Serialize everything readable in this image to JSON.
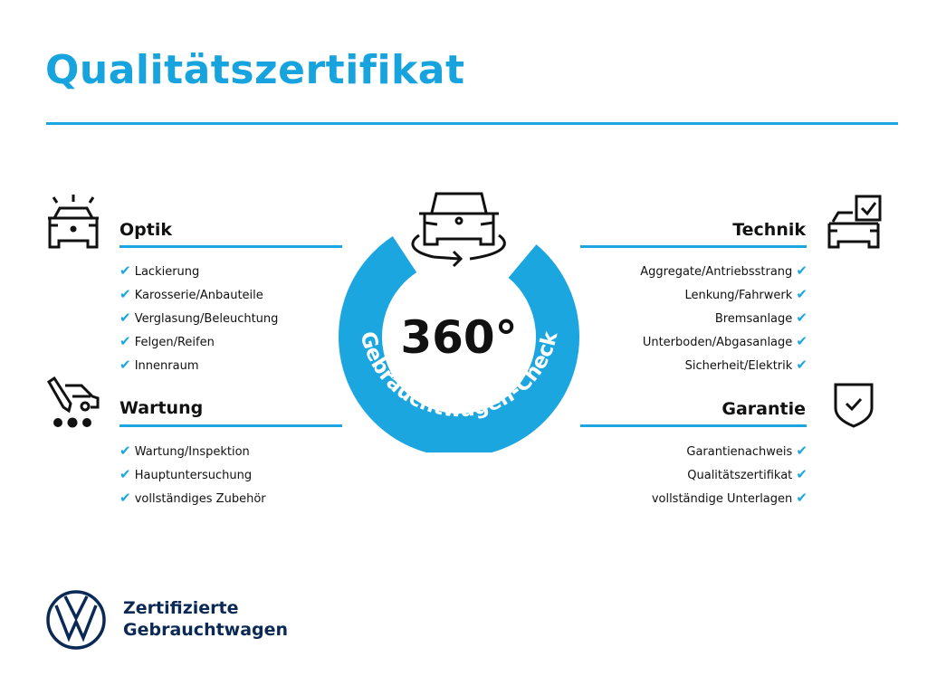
{
  "title": "Qualitätszertifikat",
  "colors": {
    "accent": "#1ba6e0",
    "navy": "#0a2a55"
  },
  "center": {
    "degrees": "360°",
    "ring_text": "Gebrauchtwagen-Check",
    "icon": "car-rotate-icon"
  },
  "sections": {
    "optik": {
      "title": "Optik",
      "icon": "car-lights-icon",
      "items": [
        "Lackierung",
        "Karosserie/Anbauteile",
        "Verglasung/Beleuchtung",
        "Felgen/Reifen",
        "Innenraum"
      ]
    },
    "wartung": {
      "title": "Wartung",
      "icon": "car-service-icon",
      "items": [
        "Wartung/Inspektion",
        "Hauptuntersuchung",
        "vollständiges Zubehör"
      ]
    },
    "technik": {
      "title": "Technik",
      "icon": "car-checkbox-icon",
      "items": [
        "Aggregate/Antriebsstrang",
        "Lenkung/Fahrwerk",
        "Bremsanlage",
        "Unterboden/Abgasanlage",
        "Sicherheit/Elektrik"
      ]
    },
    "garantie": {
      "title": "Garantie",
      "icon": "shield-check-icon",
      "items": [
        "Garantienachweis",
        "Qualitätszertifikat",
        "vollständige Unterlagen"
      ]
    }
  },
  "check_mark": "✔",
  "logo": {
    "brand": "VW",
    "line1": "Zertifizierte",
    "line2": "Gebrauchtwagen"
  }
}
